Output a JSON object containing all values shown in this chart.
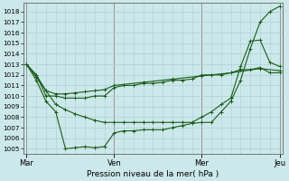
{
  "xlabel": "Pression niveau de la mer( hPa )",
  "ylim": [
    1004.5,
    1018.8
  ],
  "yticks": [
    1005,
    1006,
    1007,
    1008,
    1009,
    1010,
    1011,
    1012,
    1013,
    1014,
    1015,
    1016,
    1017,
    1018
  ],
  "xtick_labels": [
    "Mar",
    "Ven",
    "Mer",
    "Jeu"
  ],
  "xtick_positions": [
    0,
    9,
    18,
    26
  ],
  "background_color": "#cce8ea",
  "grid_color": "#aad0d4",
  "line_color": "#1a5c1a",
  "xlim": [
    -0.3,
    26.3
  ],
  "lines": [
    {
      "x": [
        0,
        1,
        2,
        3,
        4,
        5,
        6,
        7,
        8,
        9,
        10,
        11,
        12,
        13,
        14,
        15,
        16,
        17,
        18,
        19,
        20,
        21,
        22,
        23,
        24,
        25,
        26
      ],
      "y": [
        1013,
        1011.5,
        1009.5,
        1008.5,
        1005.0,
        1005.1,
        1005.2,
        1005.1,
        1005.2,
        1006.5,
        1006.7,
        1006.7,
        1006.8,
        1006.8,
        1006.8,
        1007.0,
        1007.2,
        1007.4,
        1007.5,
        1007.5,
        1008.5,
        1009.5,
        1011.5,
        1014.5,
        1017.0,
        1018.0,
        1018.5
      ]
    },
    {
      "x": [
        0,
        1,
        2,
        3,
        4,
        5,
        6,
        7,
        8,
        9,
        10,
        11,
        12,
        13,
        14,
        15,
        16,
        17,
        18,
        19,
        20,
        21,
        22,
        23,
        24,
        25,
        26
      ],
      "y": [
        1013,
        1012,
        1010,
        1010.0,
        1009.8,
        1009.8,
        1009.8,
        1010.0,
        1010.0,
        1010.8,
        1011.0,
        1011.0,
        1011.2,
        1011.2,
        1011.3,
        1011.5,
        1011.5,
        1011.6,
        1012.0,
        1012.0,
        1012.0,
        1012.2,
        1012.5,
        1012.5,
        1012.7,
        1012.2,
        1012.2
      ]
    },
    {
      "x": [
        0,
        1,
        2,
        3,
        4,
        5,
        6,
        7,
        8,
        9,
        12,
        15,
        18,
        21,
        24,
        26
      ],
      "y": [
        1013,
        1011.8,
        1010.5,
        1010.2,
        1010.2,
        1010.3,
        1010.4,
        1010.5,
        1010.6,
        1011.0,
        1011.3,
        1011.6,
        1011.9,
        1012.2,
        1012.6,
        1012.4
      ]
    },
    {
      "x": [
        0,
        1,
        2,
        3,
        4,
        5,
        6,
        7,
        8,
        9,
        10,
        11,
        12,
        13,
        14,
        15,
        16,
        17,
        18,
        19,
        20,
        21,
        22,
        23,
        24,
        25,
        26
      ],
      "y": [
        1013,
        1012.0,
        1010.5,
        1009.2,
        1008.7,
        1008.3,
        1008.0,
        1007.7,
        1007.5,
        1007.5,
        1007.5,
        1007.5,
        1007.5,
        1007.5,
        1007.5,
        1007.5,
        1007.5,
        1007.5,
        1008.0,
        1008.5,
        1009.2,
        1009.8,
        1012.8,
        1015.2,
        1015.3,
        1013.2,
        1012.8
      ]
    }
  ],
  "vline_positions": [
    0,
    9,
    18,
    26
  ],
  "vline_color": "#888888"
}
